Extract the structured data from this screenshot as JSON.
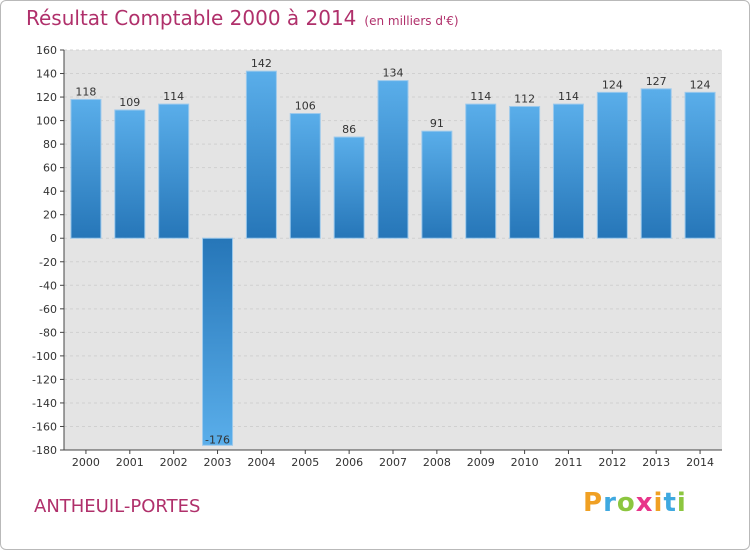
{
  "title": "Résultat Comptable 2000 à 2014",
  "subtitle": "(en milliers d'€)",
  "commune": "ANTHEUIL-PORTES",
  "logo": {
    "letters": [
      "P",
      "r",
      "o",
      "x",
      "i",
      "t",
      "i"
    ],
    "colors": [
      "#f0a023",
      "#3fa9e0",
      "#8cc63f",
      "#e8358a",
      "#f0a023",
      "#3fa9e0",
      "#8cc63f"
    ]
  },
  "colors": {
    "title": "#b0306b",
    "bar_top": "#5aaeea",
    "bar_bottom": "#2676b8",
    "grid": "#d0d0d0",
    "plot_bg": "#e4e4e4"
  },
  "chart_data": {
    "type": "bar",
    "title": "Résultat Comptable 2000 à 2014",
    "ylabel": "en milliers d'€",
    "categories": [
      "2000",
      "2001",
      "2002",
      "2003",
      "2004",
      "2005",
      "2006",
      "2007",
      "2008",
      "2009",
      "2010",
      "2011",
      "2012",
      "2013",
      "2014"
    ],
    "values": [
      118,
      109,
      114,
      -176,
      142,
      106,
      86,
      134,
      91,
      114,
      112,
      114,
      124,
      127,
      124
    ],
    "labels": [
      "118",
      "109",
      "114",
      "-176",
      "142",
      "106",
      "86",
      "134",
      "91",
      "114",
      "112",
      "114",
      "124",
      "127",
      "124"
    ],
    "ylim": [
      -180,
      160
    ],
    "yticks": [
      160,
      140,
      120,
      100,
      80,
      60,
      40,
      20,
      0,
      -20,
      -40,
      -60,
      -80,
      -100,
      -120,
      -140,
      -160,
      -180
    ],
    "grid": true
  }
}
